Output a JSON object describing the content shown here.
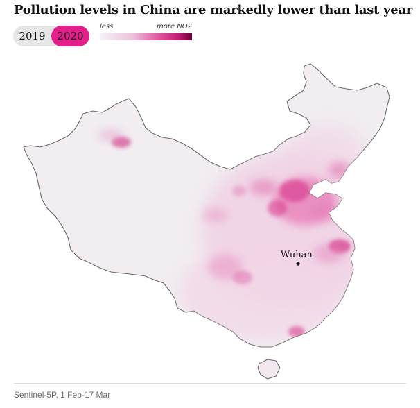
{
  "title": "Pollution levels in China are markedly lower than last year",
  "toggle": {
    "options": [
      "2019",
      "2020"
    ],
    "selected": "2020",
    "active_color": "#e21f8a",
    "inactive_color": "#e6e6e6"
  },
  "legend": {
    "less_label": "less",
    "more_label": "more NO2",
    "color_low": "#f3eef5",
    "color_high": "#7a0040"
  },
  "map": {
    "region": "China",
    "base_fill": "#f1eef2",
    "city": {
      "name": "Wuhan"
    }
  },
  "source": "Sentinel-5P, 1 Feb-17 Mar"
}
